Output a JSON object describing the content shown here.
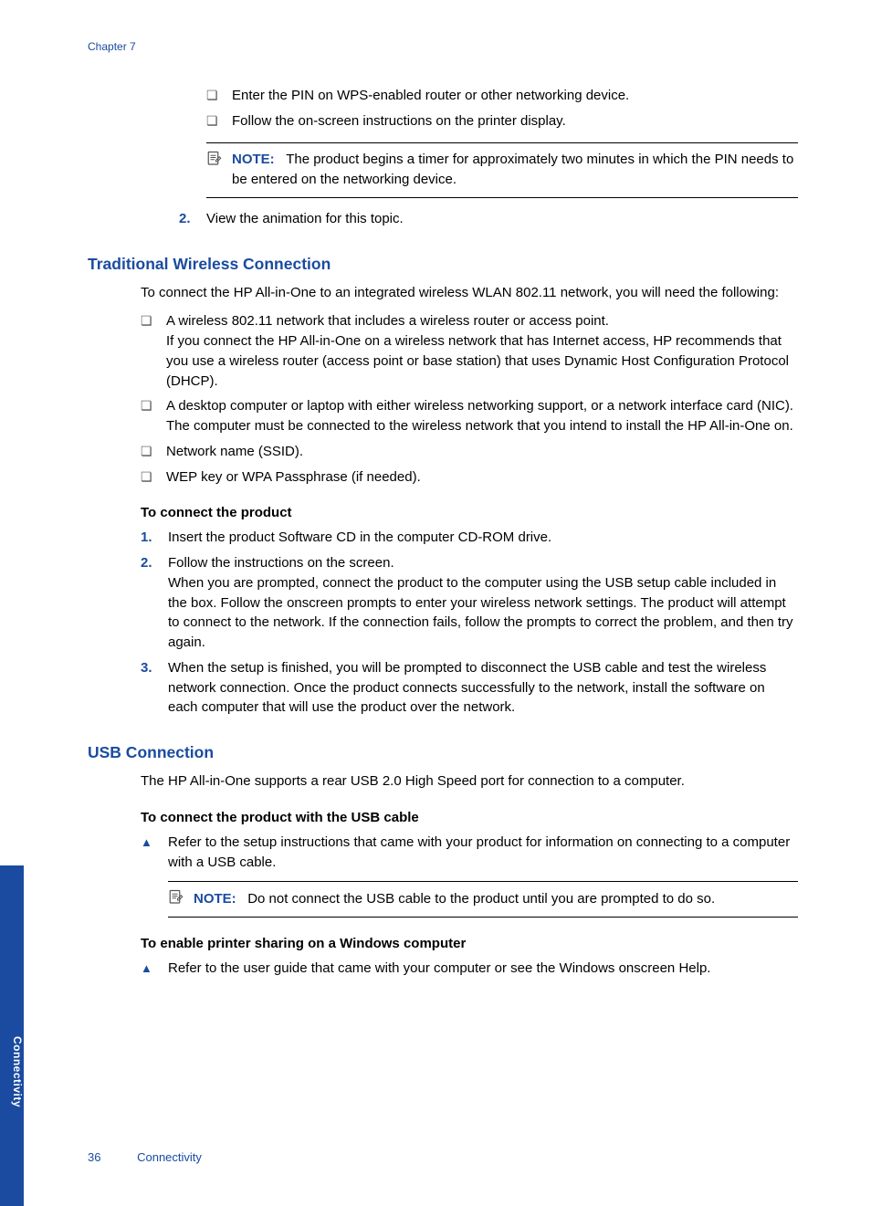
{
  "colors": {
    "brand": "#1a4ba0",
    "text": "#000000",
    "white": "#ffffff"
  },
  "header": {
    "chapter": "Chapter 7"
  },
  "pinSection": {
    "bullets": [
      "Enter the PIN on WPS-enabled router or other networking device.",
      "Follow the on-screen instructions on the printer display."
    ],
    "noteLabel": "NOTE:",
    "noteText": "The product begins a timer for approximately two minutes in which the PIN needs to be entered on the networking device."
  },
  "continuedStep": {
    "num": "2.",
    "text": "View the animation for this topic."
  },
  "traditional": {
    "heading": "Traditional Wireless Connection",
    "intro": "To connect the HP All-in-One to an integrated wireless WLAN 802.11 network, you will need the following:",
    "reqs": [
      "A wireless 802.11 network that includes a wireless router or access point.\nIf you connect the HP All-in-One on a wireless network that has Internet access, HP recommends that you use a wireless router (access point or base station) that uses Dynamic Host Configuration Protocol (DHCP).",
      "A desktop computer or laptop with either wireless networking support, or a network interface card (NIC). The computer must be connected to the wireless network that you intend to install the HP All-in-One on.",
      "Network name (SSID).",
      "WEP key or WPA Passphrase (if needed)."
    ],
    "connectHeading": "To connect the product",
    "steps": [
      {
        "num": "1.",
        "text": "Insert the product Software CD in the computer CD-ROM drive."
      },
      {
        "num": "2.",
        "text": "Follow the instructions on the screen.\nWhen you are prompted, connect the product to the computer using the USB setup cable included in the box. Follow the onscreen prompts to enter your wireless network settings. The product will attempt to connect to the network. If the connection fails, follow the prompts to correct the problem, and then try again."
      },
      {
        "num": "3.",
        "text": "When the setup is finished, you will be prompted to disconnect the USB cable and test the wireless network connection. Once the product connects successfully to the network, install the software on each computer that will use the product over the network."
      }
    ]
  },
  "usb": {
    "heading": "USB Connection",
    "intro": "The HP All-in-One supports a rear USB 2.0 High Speed port for connection to a computer.",
    "connectHeading": "To connect the product with the USB cable",
    "triStep": "Refer to the setup instructions that came with your product for information on connecting to a computer with a USB cable.",
    "noteLabel": "NOTE:",
    "noteText": "Do not connect the USB cable to the product until you are prompted to do so.",
    "shareHeading": "To enable printer sharing on a Windows computer",
    "shareStep": "Refer to the user guide that came with your computer or see the Windows onscreen Help."
  },
  "sideTab": "Connectivity",
  "footer": {
    "page": "36",
    "section": "Connectivity"
  }
}
